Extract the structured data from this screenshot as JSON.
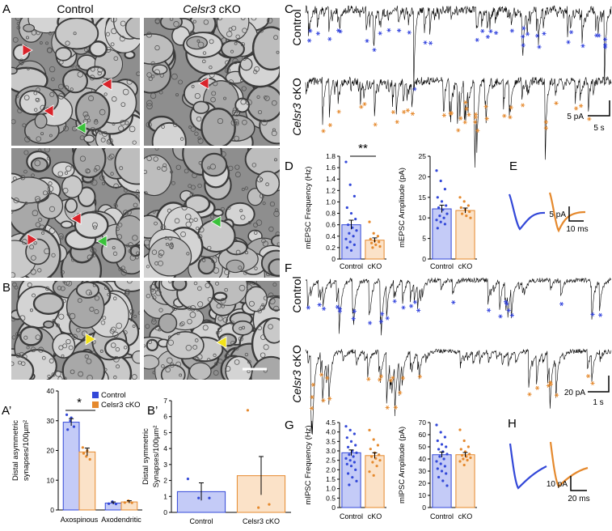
{
  "em": {
    "panels": [
      "A",
      "B"
    ],
    "control": "Control",
    "gene": "Celsr3",
    "cko": "cKO"
  },
  "recordings": [
    {
      "panel": "C",
      "control": "Control",
      "gene": "Celsr3",
      "cko": "cKO",
      "scale_y": "5 pA",
      "scale_x": "5 s"
    },
    {
      "panel": "F",
      "control": "Control",
      "gene": "Celsr3",
      "cko": "cKO",
      "scale_y": "20 pA",
      "scale_x": "1 s"
    }
  ],
  "averages": [
    {
      "panel": "E",
      "scale_y": "5 pA",
      "scale_x": "10 ms"
    },
    {
      "panel": "H",
      "scale_y": "10 pA",
      "scale_x": "20 ms"
    }
  ],
  "chart_data": [
    {
      "type": "bar",
      "panel": "A’",
      "ylabel": [
        "Distal asymmetric",
        "synapses/100µm²"
      ],
      "categories": [
        "Axospinous",
        "Axodendritic"
      ],
      "legend": "upper right",
      "significance": "*",
      "ylim": [
        0,
        40
      ],
      "yticks": [
        0,
        10,
        20,
        30,
        40
      ],
      "series": [
        {
          "name": "Control",
          "color": "#c4cbf7",
          "edgecolor": "#3348d8",
          "values": [
            29.5,
            2.3
          ],
          "errors": [
            1.2,
            0.4
          ],
          "points": [
            [
              32,
              30,
              28,
              27,
              31
            ],
            [
              2.1,
              2.8,
              2.0
            ]
          ]
        },
        {
          "name": "Celsr3 cKO",
          "color": "#fbe2c8",
          "edgecolor": "#e5892d",
          "values": [
            19.5,
            2.7
          ],
          "errors": [
            1.3,
            0.4
          ],
          "points": [
            [
              21,
              18,
              17,
              19,
              20
            ],
            [
              2.5,
              3.1,
              2.4
            ]
          ]
        }
      ]
    },
    {
      "type": "bar",
      "panel": "B’",
      "ylabel": [
        "Distal symmetric",
        "Synapses/100µm²"
      ],
      "categories": [
        "Control",
        "Celsr3 cKO"
      ],
      "ylim": [
        0,
        7
      ],
      "yticks": [
        0,
        1,
        2,
        3,
        4,
        5,
        6,
        7
      ],
      "values": [
        1.3,
        2.3
      ],
      "errors": [
        0.55,
        1.2
      ],
      "colors": [
        "#c4cbf7",
        "#fbe2c8"
      ],
      "edgecolors": [
        "#3348d8",
        "#e5892d"
      ],
      "points": [
        [
          2.1,
          0.9,
          0.9
        ],
        [
          6.4,
          0.3,
          0.5
        ]
      ]
    },
    {
      "type": "bar",
      "panel": "D",
      "ylabel": [
        "mEPSC Frequency (Hz)"
      ],
      "categories": [
        "Control",
        "cKO"
      ],
      "significance": "**",
      "ylim": [
        0,
        1.8
      ],
      "yticks": [
        0,
        0.2,
        0.4,
        0.6,
        0.8,
        {
          "value": 1,
          "label": "1.0"
        },
        1.2,
        1.4,
        1.6,
        1.8
      ],
      "values": [
        0.6,
        0.33
      ],
      "errors": [
        0.08,
        0.04
      ],
      "colors": [
        "#c4cbf7",
        "#fbe2c8"
      ],
      "edgecolors": [
        "#3348d8",
        "#e5892d"
      ],
      "points": [
        [
          1.7,
          1.3,
          1.1,
          0.9,
          0.8,
          0.7,
          0.6,
          0.55,
          0.5,
          0.45,
          0.4,
          0.35,
          0.3,
          0.25,
          0.2,
          0.15
        ],
        [
          0.65,
          0.45,
          0.4,
          0.35,
          0.32,
          0.3,
          0.28,
          0.25,
          0.22,
          0.2
        ]
      ]
    },
    {
      "type": "bar",
      "ylabel": [
        "mEPSC Amplitude (pA)"
      ],
      "categories": [
        "Control",
        "cKO"
      ],
      "ylim": [
        0,
        25
      ],
      "yticks": [
        0,
        5,
        10,
        15,
        20,
        25
      ],
      "values": [
        12.2,
        11.8
      ],
      "errors": [
        0.9,
        0.6
      ],
      "colors": [
        "#c4cbf7",
        "#fbe2c8"
      ],
      "edgecolors": [
        "#3348d8",
        "#e5892d"
      ],
      "points": [
        [
          21.5,
          19,
          17,
          15,
          14,
          13,
          12.5,
          12,
          11,
          10.5,
          10,
          9.5,
          9,
          8.5,
          7.5
        ],
        [
          15,
          14,
          13,
          12.5,
          12,
          11.5,
          11,
          10.5,
          10
        ]
      ]
    },
    {
      "type": "bar",
      "panel": "G",
      "ylabel": [
        "mIPSC Frequency (Hz)"
      ],
      "categories": [
        "Control",
        "cKO"
      ],
      "ylim": [
        0,
        4.5
      ],
      "yticks": [
        0,
        0.5,
        {
          "value": 1,
          "label": "1.0"
        },
        1.5,
        {
          "value": 2,
          "label": "2.0"
        },
        2.5,
        {
          "value": 3,
          "label": "3.0"
        },
        3.5,
        {
          "value": 4,
          "label": "4.0"
        },
        4.5
      ],
      "values": [
        2.9,
        2.75
      ],
      "errors": [
        0.15,
        0.15
      ],
      "colors": [
        "#c4cbf7",
        "#fbe2c8"
      ],
      "edgecolors": [
        "#3348d8",
        "#e5892d"
      ],
      "points": [
        [
          4.3,
          4.1,
          3.9,
          3.7,
          3.5,
          3.3,
          3.2,
          3.0,
          2.9,
          2.8,
          2.7,
          2.6,
          2.5,
          2.4,
          2.3,
          2.2,
          2.0,
          1.8,
          1.6,
          1.4,
          1.2
        ],
        [
          4.1,
          3.6,
          3.3,
          3.1,
          2.9,
          2.8,
          2.7,
          2.6,
          2.5,
          2.4,
          2.2,
          1.9,
          1.7
        ]
      ]
    },
    {
      "type": "bar",
      "ylabel": [
        "mIPSC Amplitude (pA)"
      ],
      "categories": [
        "Control",
        "cKO"
      ],
      "ylim": [
        0,
        70
      ],
      "yticks": [
        0,
        10,
        20,
        30,
        40,
        50,
        60,
        70
      ],
      "values": [
        43.5,
        43.5
      ],
      "errors": [
        2.2,
        1.8
      ],
      "colors": [
        "#c4cbf7",
        "#fbe2c8"
      ],
      "edgecolors": [
        "#3348d8",
        "#e5892d"
      ],
      "points": [
        [
          68,
          62,
          58,
          55,
          52,
          50,
          48,
          46,
          44,
          42,
          40,
          38,
          36,
          34,
          32,
          30,
          28,
          25,
          22,
          18
        ],
        [
          64,
          55,
          50,
          48,
          46,
          44,
          43,
          42,
          41,
          40,
          39,
          38,
          35
        ]
      ]
    }
  ]
}
